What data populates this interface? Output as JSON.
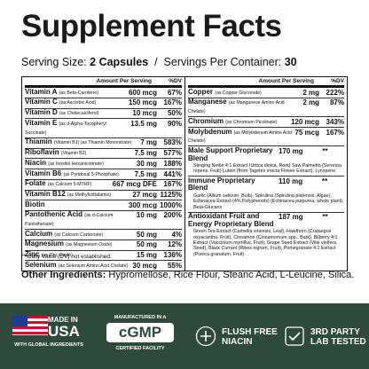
{
  "header": {
    "title": "Supplement Facts",
    "serving_size_label": "Serving Size:",
    "serving_size_value": "2 Capsules",
    "separator": "/",
    "servings_label": "Servings Per Container:",
    "servings_value": "30"
  },
  "table": {
    "columns": [
      "Amount Per Serving",
      "%DV"
    ],
    "left_rows": [
      {
        "name": "Vitamin A",
        "form": "(as Beta-Carotene)",
        "amount": "600 mcg",
        "dv": "67%"
      },
      {
        "name": "Vitamin C",
        "form": "(as Ascorbic Acid)",
        "amount": "150 mcg",
        "dv": "167%"
      },
      {
        "name": "Vitamin D",
        "form": "(as Cholecalciferol)",
        "amount": "10 mcg",
        "dv": "50%"
      },
      {
        "name": "Vitamin E",
        "form": "(as d-Alpha-Tocopheryl Succinate)",
        "amount": "13.5 mg",
        "dv": "90%"
      },
      {
        "name": "Thiamin",
        "form": "(Vitamin B1) (as Thiamin Mononitrate)",
        "amount": "7 mg",
        "dv": "583%"
      },
      {
        "name": "Riboflavin",
        "form": "(Vitamin B2)",
        "amount": "7.5 mg",
        "dv": "577%"
      },
      {
        "name": "Niacin",
        "form": "(as Inositol Hexanicotinate)",
        "amount": "30 mg",
        "dv": "188%"
      },
      {
        "name": "Vitamin B6",
        "form": "(as Pyridoxal 5-Phosphate)",
        "amount": "7.5 mg",
        "dv": "441%"
      },
      {
        "name": "Folate",
        "form": "(as Calcium 5-MTHF)",
        "amount": "667 mcg DFE",
        "dv": "167%"
      },
      {
        "name": "Vitamin B12",
        "form": "(as Methylcobalamin)",
        "amount": "27 mcg",
        "dv": "1125%"
      },
      {
        "name": "Biotin",
        "form": "",
        "amount": "300 mcg",
        "dv": "1000%"
      },
      {
        "name": "Pantothenic Acid",
        "form": "(as d-Calcium Pantothenate)",
        "amount": "10 mg",
        "dv": "200%"
      },
      {
        "name": "Calcium",
        "form": "(as Calcium Carbonate)",
        "amount": "50 mg",
        "dv": "4%"
      },
      {
        "name": "Magnesium",
        "form": "(as Magnesium Oxide)",
        "amount": "50 mg",
        "dv": "12%"
      },
      {
        "name": "Zinc",
        "form": "(as Zinc Oxide)",
        "amount": "15 mg",
        "dv": "136%"
      },
      {
        "name": "Selenium",
        "form": "(as Selenium Amino Acid Chelate)",
        "amount": "30 mcg",
        "dv": "55%"
      }
    ],
    "right_rows": [
      {
        "name": "Copper",
        "form": "(as Copper Gluconate)",
        "amount": "2 mg",
        "dv": "222%"
      },
      {
        "name": "Manganese",
        "form": "(as Manganese Amino Acid Chelate)",
        "amount": "2 mg",
        "dv": "87%"
      },
      {
        "name": "Chromium",
        "form": "(as Chromium Picolinate)",
        "amount": "120 mcg",
        "dv": "343%"
      },
      {
        "name": "Molybdenum",
        "form": "(as Molybdenum Amino Acid Chelate)",
        "amount": "75 mcg",
        "dv": "167%"
      },
      {
        "name": "Male Support Proprietary Blend",
        "form": "Stinging Nettle 4:1 Extract (Urtica dioica, Root) Saw Palmetto (Serenoa repens, Fruit) Lutein (from Tagetes erecta Flower Extract), Lycopene",
        "amount": "170 mg",
        "dv": "**"
      },
      {
        "name": "Immune Proprietary Blend",
        "form": "Garlic (Allium sativum, Bulb), Spirulina (Spirulina platensis, Algae), Echinacea Extract (4% Polyphenols) (Echinacea purpurea, whole plant), Beta-Glucans",
        "amount": "110 mg",
        "dv": "**"
      },
      {
        "name": "Antioxidant Fruit and Energy Proprietary Blend",
        "form": "Green Tea Extract (Camellia sinensis, Leaf), Hawthorn (Crataegus oxyacantha, Fruit), Cinnamon (Cinnamomum spp., Bark), Bilberry 4:1 Extract (Vaccinium myrtillus, Fruit), Grape Seed Extract (Vitis vinifera, Seed), Black Currant (Ribes nigrum, Fruit), Pomegranate 4:1 Extract (Punica granatum, Fruit)",
        "amount": "187 mg",
        "dv": "**"
      }
    ]
  },
  "footnote": "** Daily Value (DV) not established.",
  "other_ingredients": {
    "label": "Other Ingredients:",
    "text": "Hypromellose, Rice Flour, Stearic Acid, L-Leucine, Silica."
  },
  "badges": [
    {
      "lines": [
        "MADE IN",
        "USA",
        "WITH GLOBAL INGREDIENTS"
      ]
    },
    {
      "lines": [
        "MANUFACTURED IN A",
        "cGMP",
        "CERTIFIED FACILITY"
      ]
    },
    {
      "lines": [
        "FLUSH FREE",
        "NIACIN"
      ]
    },
    {
      "lines": [
        "3RD PARTY",
        "LAB TESTED"
      ]
    }
  ]
}
